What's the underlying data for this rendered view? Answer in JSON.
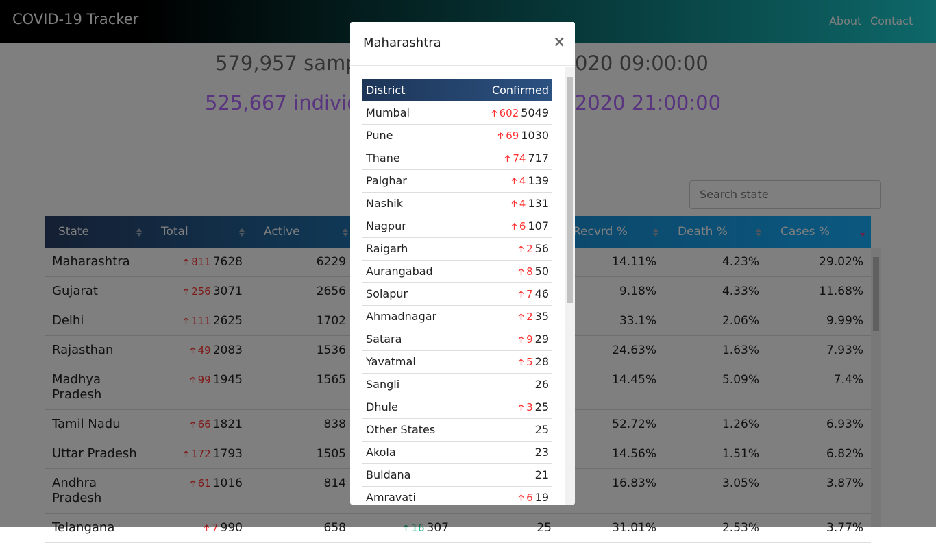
{
  "navbar": {
    "brand": "COVID-19 Tracker",
    "links": [
      "About",
      "Contact"
    ]
  },
  "stats": {
    "samples_left": "579,957 samp",
    "samples_right": "020 09:00:00",
    "individuals_left": "525,667 indivic",
    "individuals_right": "/2020 21:00:00"
  },
  "search": {
    "placeholder": "Search state"
  },
  "table": {
    "headers": [
      "State",
      "Total",
      "Active",
      "Recvrd %",
      "Death %",
      "Cases %"
    ],
    "rows": [
      {
        "state": "Maharashtra",
        "total_delta": 811,
        "total": 7628,
        "active": 6229,
        "recovered_pct": "14.11%",
        "death_pct": "4.23%",
        "cases_pct": "29.02%"
      },
      {
        "state": "Gujarat",
        "total_delta": 256,
        "total": 3071,
        "active": 2656,
        "recovered_pct": "9.18%",
        "death_pct": "4.33%",
        "cases_pct": "11.68%"
      },
      {
        "state": "Delhi",
        "total_delta": 111,
        "total": 2625,
        "active": 1702,
        "recovered_pct": "33.1%",
        "death_pct": "2.06%",
        "cases_pct": "9.99%"
      },
      {
        "state": "Rajasthan",
        "total_delta": 49,
        "total": 2083,
        "active": 1536,
        "recovered_pct": "24.63%",
        "death_pct": "1.63%",
        "cases_pct": "7.93%"
      },
      {
        "state": "Madhya Pradesh",
        "total_delta": 99,
        "total": 1945,
        "active": 1565,
        "recovered_pct": "14.45%",
        "death_pct": "5.09%",
        "cases_pct": "7.4%"
      },
      {
        "state": "Tamil Nadu",
        "total_delta": 66,
        "total": 1821,
        "active": 838,
        "recovered_pct": "52.72%",
        "death_pct": "1.26%",
        "cases_pct": "6.93%"
      },
      {
        "state": "Uttar Pradesh",
        "total_delta": 172,
        "total": 1793,
        "active": 1505,
        "recovered_pct": "14.56%",
        "death_pct": "1.51%",
        "cases_pct": "6.82%"
      },
      {
        "state": "Andhra Pradesh",
        "total_delta": 61,
        "total": 1016,
        "active": 814,
        "recovered_pct": "16.83%",
        "death_pct": "3.05%",
        "cases_pct": "3.87%"
      },
      {
        "state": "Telangana",
        "total_delta": 7,
        "total": 990,
        "active": 658,
        "recovered_delta": 16,
        "recovered": 307,
        "deaths": 25,
        "recovered_pct": "31.01%",
        "death_pct": "2.53%",
        "cases_pct": "3.77%"
      }
    ]
  },
  "modal": {
    "title": "Maharashtra",
    "close": "×",
    "headers": [
      "District",
      "Confirmed"
    ],
    "rows": [
      {
        "district": "Mumbai",
        "delta": 602,
        "confirmed": 5049
      },
      {
        "district": "Pune",
        "delta": 69,
        "confirmed": 1030
      },
      {
        "district": "Thane",
        "delta": 74,
        "confirmed": 717
      },
      {
        "district": "Palghar",
        "delta": 4,
        "confirmed": 139
      },
      {
        "district": "Nashik",
        "delta": 4,
        "confirmed": 131
      },
      {
        "district": "Nagpur",
        "delta": 6,
        "confirmed": 107
      },
      {
        "district": "Raigarh",
        "delta": 2,
        "confirmed": 56
      },
      {
        "district": "Aurangabad",
        "delta": 8,
        "confirmed": 50
      },
      {
        "district": "Solapur",
        "delta": 7,
        "confirmed": 46
      },
      {
        "district": "Ahmadnagar",
        "delta": 2,
        "confirmed": 35
      },
      {
        "district": "Satara",
        "delta": 9,
        "confirmed": 29
      },
      {
        "district": "Yavatmal",
        "delta": 5,
        "confirmed": 28
      },
      {
        "district": "Sangli",
        "delta": null,
        "confirmed": 26
      },
      {
        "district": "Dhule",
        "delta": 3,
        "confirmed": 25
      },
      {
        "district": "Other States",
        "delta": null,
        "confirmed": 25
      },
      {
        "district": "Akola",
        "delta": null,
        "confirmed": 23
      },
      {
        "district": "Buldana",
        "delta": null,
        "confirmed": 21
      },
      {
        "district": "Amravati",
        "delta": 6,
        "confirmed": 19
      }
    ]
  }
}
